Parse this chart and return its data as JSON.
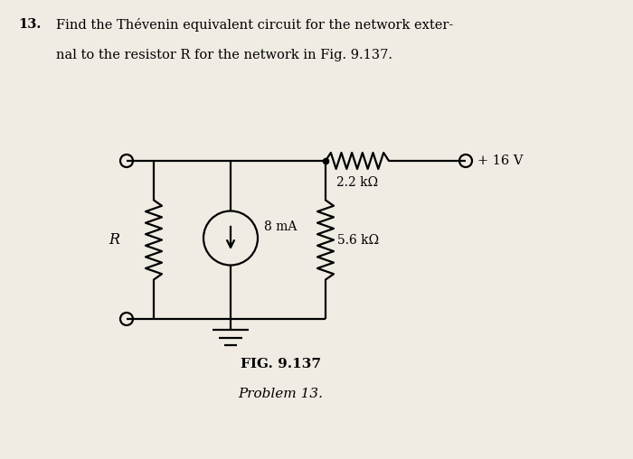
{
  "bg_color": "#f0ece4",
  "line_color": "#000000",
  "title_number": "13.",
  "fig_label": "FIG. 9.137",
  "fig_sublabel": "Problem 13.",
  "label_R": "R",
  "label_8mA": "8 mA",
  "label_2k2": "2.2 kΩ",
  "label_5k6": "5.6 kΩ",
  "label_16V": "+ 16 V"
}
